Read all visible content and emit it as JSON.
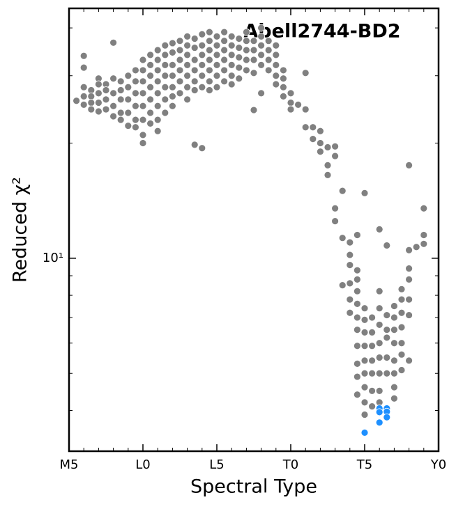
{
  "chart_data": {
    "type": "scatter",
    "title": "Abell2744-BD2",
    "xlabel": "Spectral Type",
    "ylabel": "Reduced χ²",
    "xlim": [
      0,
      25
    ],
    "xticks": [
      {
        "value": 0,
        "label": "M5"
      },
      {
        "value": 5,
        "label": "L0"
      },
      {
        "value": 10,
        "label": "L5"
      },
      {
        "value": 15,
        "label": "T0"
      },
      {
        "value": 20,
        "label": "T5"
      },
      {
        "value": 25,
        "label": "Y0"
      }
    ],
    "xminorticks": [
      1,
      2,
      3,
      4,
      6,
      7,
      8,
      9,
      11,
      12,
      13,
      14,
      16,
      17,
      18,
      19,
      21,
      22,
      23,
      24
    ],
    "ylim": [
      3.13,
      45
    ],
    "log_y": true,
    "yticks": [
      {
        "value": 10,
        "label": "10¹"
      }
    ],
    "yminorticks": [
      4,
      5,
      6,
      7,
      8,
      9,
      20,
      30,
      40
    ],
    "series": [
      {
        "color": "#808080",
        "x": [
          0.5,
          1,
          1,
          1,
          1,
          1,
          1.5,
          1.5,
          1.5,
          1.5,
          2,
          2,
          2,
          2,
          2,
          2.5,
          2.5,
          2.5,
          2.5,
          3,
          3,
          3,
          3,
          3,
          3.5,
          3.5,
          3.5,
          3.5,
          3.5,
          4,
          4,
          4,
          4,
          4,
          4.5,
          4.5,
          4.5,
          4.5,
          4.5,
          4.5,
          5,
          5,
          5,
          5,
          5,
          5,
          5,
          5,
          5.5,
          5.5,
          5.5,
          5.5,
          5.5,
          5.5,
          5.5,
          6,
          6,
          6,
          6,
          6,
          6,
          6,
          6,
          6.5,
          6.5,
          6.5,
          6.5,
          6.5,
          6.5,
          6.5,
          7,
          7,
          7,
          7,
          7,
          7,
          7,
          7.5,
          7.5,
          7.5,
          7.5,
          7.5,
          7.5,
          8,
          8,
          8,
          8,
          8,
          8,
          8,
          8.5,
          8.5,
          8.5,
          8.5,
          8.5,
          8.5,
          8.5,
          9,
          9,
          9,
          9,
          9,
          9,
          9,
          9.5,
          9.5,
          9.5,
          9.5,
          9.5,
          9.5,
          9.5,
          10,
          10,
          10,
          10,
          10,
          10,
          10.5,
          10.5,
          10.5,
          10.5,
          10.5,
          10.5,
          11,
          11,
          11,
          11,
          11,
          11,
          11.5,
          11.5,
          11.5,
          11.5,
          11.5,
          12,
          12,
          12,
          12,
          12,
          12.5,
          12.5,
          12.5,
          12.5,
          12.5,
          13,
          13,
          13,
          13,
          13,
          13,
          13.5,
          13.5,
          13.5,
          13.5,
          14,
          14,
          14,
          14,
          14,
          14.5,
          14.5,
          14.5,
          14.5,
          15,
          15,
          15,
          15.5,
          16,
          16,
          16,
          16.5,
          16.5,
          17,
          17,
          17,
          17.5,
          17.5,
          17.5,
          18,
          18,
          18,
          18,
          18.5,
          18.5,
          18.5,
          19,
          19,
          19,
          19,
          19,
          19,
          19.5,
          19.5,
          19.5,
          19.5,
          19.5,
          19.5,
          19.5,
          19.5,
          19.5,
          19.5,
          19.5,
          20,
          20,
          20,
          20,
          20,
          20,
          20,
          20,
          20,
          20,
          20.5,
          20.5,
          20.5,
          20.5,
          20.5,
          20.5,
          20.5,
          21,
          21,
          21,
          21,
          21,
          21,
          21,
          21,
          21,
          21.5,
          21.5,
          21.5,
          21.5,
          21.5,
          21.5,
          22,
          22,
          22,
          22,
          22,
          22,
          22,
          22,
          22.5,
          22.5,
          22.5,
          22.5,
          22.5,
          22.5,
          22.5,
          23,
          23,
          23,
          23,
          23,
          23,
          23,
          23.5,
          24,
          24,
          24
        ],
        "values": [
          25.8,
          33.8,
          31.5,
          28,
          26.5,
          25.2,
          27.5,
          26.5,
          25.5,
          24.5,
          29.5,
          28.5,
          27,
          25.5,
          24.2,
          28.5,
          27.5,
          26,
          24.5,
          36.6,
          29.5,
          27,
          25,
          23.5,
          29,
          27.5,
          26,
          24,
          23,
          30,
          28,
          26,
          24,
          22.2,
          31,
          29,
          27,
          25,
          23,
          22,
          33,
          31,
          29,
          27,
          25,
          23,
          21,
          20,
          34,
          32,
          30,
          28,
          26,
          24,
          22.5,
          35,
          33,
          31,
          29,
          27,
          25,
          23,
          21.5,
          36,
          34,
          32,
          30,
          28,
          26,
          24,
          36.5,
          34.5,
          32,
          30,
          28,
          26.5,
          25,
          37,
          35,
          33,
          31,
          29,
          27,
          38,
          36,
          34,
          32,
          30,
          28,
          26,
          37.5,
          35.5,
          33,
          31,
          29,
          27.5,
          19.8,
          38.5,
          36,
          34,
          32,
          30,
          28,
          19.4,
          39,
          37,
          35,
          33,
          31,
          29,
          27.5,
          38,
          36,
          34,
          32,
          30,
          28,
          39,
          37,
          35,
          33,
          31,
          29,
          38,
          36,
          34,
          32,
          30,
          28.5,
          37.5,
          35.5,
          33.5,
          31.5,
          29.5,
          39,
          37,
          35,
          33,
          31,
          37,
          35,
          33,
          30.5,
          24.4,
          40,
          38,
          36,
          34,
          32,
          27,
          37,
          35,
          33,
          31,
          36,
          34,
          32,
          30,
          28.5,
          31,
          29.5,
          28,
          26.5,
          27,
          25.5,
          24.5,
          25.2,
          30.5,
          24.5,
          22,
          22,
          20.5,
          21.5,
          20,
          19,
          19.5,
          17.5,
          16.5,
          19.6,
          18.5,
          13.5,
          12.5,
          15,
          11.3,
          8.5,
          11,
          10.2,
          9.6,
          8.6,
          7.8,
          7.2,
          11.5,
          9.3,
          8.8,
          8.2,
          7.6,
          7,
          6.5,
          5.9,
          5.3,
          4.9,
          4.4,
          14.8,
          7.4,
          6.9,
          6.4,
          5.9,
          5.4,
          5,
          4.6,
          4.2,
          3.9,
          7,
          6.4,
          5.9,
          5.4,
          5,
          4.5,
          4.1,
          11.9,
          8.2,
          7.4,
          6.7,
          6,
          5.5,
          5,
          4.5,
          4.2,
          10.8,
          7.1,
          6.5,
          6.2,
          5.5,
          5,
          7.5,
          7,
          6.5,
          6,
          5.4,
          5,
          4.6,
          4.3,
          8.3,
          7.8,
          7.2,
          6.6,
          6,
          5.6,
          5.1,
          17.5,
          10.5,
          9.4,
          8.8,
          7.8,
          7.1,
          5.4,
          10.7,
          13.5,
          11.5,
          10.9
        ]
      },
      {
        "color": "#1e90ff",
        "x": [
          20,
          21,
          21,
          21,
          21.5,
          21.5,
          21.5
        ],
        "values": [
          3.5,
          4.05,
          3.96,
          3.72,
          4.05,
          3.97,
          3.84
        ]
      }
    ]
  }
}
